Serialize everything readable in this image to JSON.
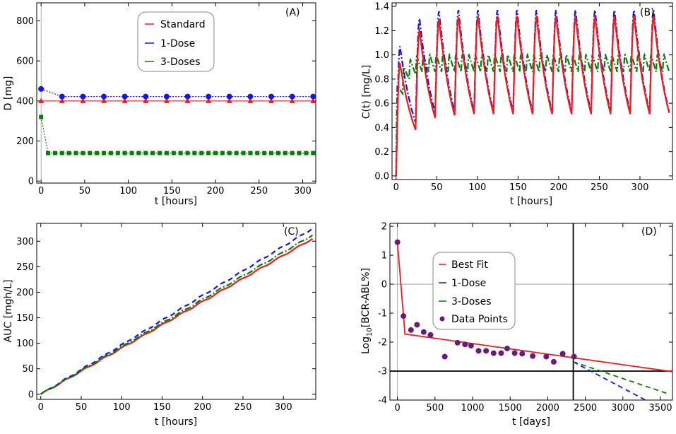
{
  "colors": {
    "standard": "#ee1c1c",
    "one_dose": "#1515e6",
    "three_doses": "#0a7a0a",
    "data_points": "#6a1b7a",
    "ref_line": "#000000",
    "grid": "#999999"
  },
  "chart_data": [
    {
      "id": "A",
      "type": "scatter",
      "panel_label": "(A)",
      "xlabel": "t [hours]",
      "ylabel": "D [mg]",
      "xlim": [
        -5,
        315
      ],
      "ylim": [
        -10,
        890
      ],
      "xticks": [
        "0",
        "50",
        "100",
        "150",
        "200",
        "250",
        "300"
      ],
      "yticks": [
        "0",
        "200",
        "400",
        "600",
        "800"
      ],
      "legend": {
        "position": "top-center",
        "entries": [
          "Standard",
          "1-Dose",
          "3-Doses"
        ]
      },
      "series": [
        {
          "name": "Standard",
          "color": "standard",
          "marker": "triangle",
          "line": "solid",
          "x": [
            0,
            24,
            48,
            72,
            96,
            120,
            144,
            168,
            192,
            216,
            240,
            264,
            288,
            312
          ],
          "y": [
            400,
            400,
            400,
            400,
            400,
            400,
            400,
            400,
            400,
            400,
            400,
            400,
            400,
            400
          ]
        },
        {
          "name": "1-Dose",
          "color": "one_dose",
          "marker": "circle",
          "line": "dotted",
          "x": [
            0,
            24,
            48,
            72,
            96,
            120,
            144,
            168,
            192,
            216,
            240,
            264,
            288,
            312
          ],
          "y": [
            460,
            422,
            422,
            422,
            422,
            422,
            422,
            422,
            422,
            422,
            422,
            422,
            422,
            422
          ]
        },
        {
          "name": "3-Doses",
          "color": "three_doses",
          "marker": "square",
          "line": "dotted",
          "x": [
            0,
            8,
            16,
            24,
            32,
            40,
            48,
            56,
            64,
            72,
            80,
            88,
            96,
            104,
            112,
            120,
            128,
            136,
            144,
            152,
            160,
            168,
            176,
            184,
            192,
            200,
            208,
            216,
            224,
            232,
            240,
            248,
            256,
            264,
            272,
            280,
            288,
            296,
            304,
            312
          ],
          "y": [
            320,
            140,
            140,
            140,
            140,
            140,
            140,
            140,
            140,
            140,
            140,
            140,
            140,
            140,
            140,
            140,
            140,
            140,
            140,
            140,
            140,
            140,
            140,
            140,
            140,
            140,
            140,
            140,
            140,
            140,
            140,
            140,
            140,
            140,
            140,
            140,
            140,
            140,
            140,
            140
          ]
        }
      ]
    },
    {
      "id": "B",
      "type": "line",
      "panel_label": "(B)",
      "xlabel": "t [hours]",
      "ylabel": "C(t) [mg/L]",
      "xlim": [
        -5,
        340
      ],
      "ylim": [
        -0.03,
        1.43
      ],
      "xticks": [
        "0",
        "50",
        "100",
        "150",
        "200",
        "250",
        "300"
      ],
      "yticks": [
        "0.0",
        "0.2",
        "0.4",
        "0.6",
        "0.8",
        "1.0",
        "1.2",
        "1.4"
      ],
      "series": [
        {
          "name": "Standard",
          "color": "standard",
          "dash": "solid",
          "interval": 24,
          "peaks": [
            0.93,
            1.2,
            1.29,
            1.31,
            1.32,
            1.32,
            1.32,
            1.32,
            1.32,
            1.32,
            1.32,
            1.32,
            1.32,
            1.32
          ],
          "troughs": [
            0.38,
            0.48,
            0.5,
            0.51,
            0.51,
            0.51,
            0.51,
            0.51,
            0.51,
            0.51,
            0.51,
            0.51,
            0.51,
            0.52
          ]
        },
        {
          "name": "1-Dose",
          "color": "one_dose",
          "dash": "dashdot",
          "interval": 24,
          "peaks": [
            1.07,
            1.3,
            1.36,
            1.37,
            1.37,
            1.37,
            1.37,
            1.37,
            1.37,
            1.37,
            1.37,
            1.37,
            1.37,
            1.37
          ],
          "troughs": [
            0.44,
            0.52,
            0.53,
            0.53,
            0.53,
            0.53,
            0.53,
            0.53,
            0.53,
            0.53,
            0.53,
            0.53,
            0.53,
            0.53
          ]
        },
        {
          "name": "3-Doses",
          "color": "three_doses",
          "dash": "dashdot",
          "interval": 8,
          "peaks": [
            0.75,
            0.9,
            0.96,
            0.99,
            1.0,
            1.0
          ],
          "troughs": [
            0.68,
            0.8,
            0.84,
            0.86,
            0.86,
            0.86
          ]
        }
      ]
    },
    {
      "id": "C",
      "type": "line",
      "panel_label": "(C)",
      "xlabel": "t [hours]",
      "ylabel": "AUC [mgh/L]",
      "xlim": [
        -5,
        340
      ],
      "ylim": [
        -10,
        335
      ],
      "xticks": [
        "0",
        "50",
        "100",
        "150",
        "200",
        "250",
        "300"
      ],
      "yticks": [
        "0",
        "50",
        "100",
        "150",
        "200",
        "250",
        "300"
      ],
      "series": [
        {
          "name": "Standard",
          "color": "standard",
          "dash": "solid",
          "x": [
            0,
            336
          ],
          "y": [
            0,
            305
          ]
        },
        {
          "name": "1-Dose",
          "color": "one_dose",
          "dash": "dashed",
          "x": [
            0,
            336
          ],
          "y": [
            0,
            325
          ]
        },
        {
          "name": "3-Doses",
          "color": "three_doses",
          "dash": "dashdot",
          "x": [
            0,
            336
          ],
          "y": [
            0,
            312
          ]
        }
      ]
    },
    {
      "id": "D",
      "type": "line",
      "panel_label": "(D)",
      "xlabel": "t [days]",
      "ylabel": "Log10[BCR-ABL%]",
      "xlim": [
        -100,
        3660
      ],
      "ylim": [
        -4,
        2.1
      ],
      "xticks": [
        "0",
        "500",
        "1000",
        "1500",
        "2000",
        "2500",
        "3000",
        "3500"
      ],
      "yticks": [
        "-4",
        "-3",
        "-2",
        "-1",
        "0",
        "1",
        "2"
      ],
      "threshold_y": -3,
      "vertical_x": 2340,
      "legend": {
        "position": "center-left",
        "entries": [
          "Best Fit",
          "1-Dose",
          "3-Doses",
          "Data Points"
        ]
      },
      "series": [
        {
          "name": "Best Fit",
          "color": "standard",
          "dash": "solid",
          "x": [
            0,
            100,
            3660
          ],
          "y": [
            1.45,
            -1.72,
            -3.02
          ]
        },
        {
          "name": "1-Dose",
          "color": "one_dose",
          "dash": "dashed",
          "x": [
            2340,
            3300
          ],
          "y": [
            -2.68,
            -4.0
          ]
        },
        {
          "name": "3-Doses",
          "color": "three_doses",
          "dash": "dashed",
          "x": [
            2340,
            3600
          ],
          "y": [
            -2.68,
            -3.78
          ]
        },
        {
          "name": "Data Points",
          "color": "data_points",
          "marker": "circle",
          "x": [
            0,
            80,
            180,
            260,
            350,
            440,
            630,
            800,
            900,
            980,
            1080,
            1180,
            1280,
            1380,
            1460,
            1560,
            1660,
            1800,
            1980,
            2080,
            2200,
            2350
          ],
          "y": [
            1.45,
            -1.1,
            -1.58,
            -1.4,
            -1.65,
            -1.75,
            -2.5,
            -2.02,
            -2.08,
            -2.12,
            -2.3,
            -2.3,
            -2.38,
            -2.38,
            -2.22,
            -2.38,
            -2.4,
            -2.48,
            -2.5,
            -2.68,
            -2.4,
            -2.5
          ]
        }
      ]
    }
  ]
}
